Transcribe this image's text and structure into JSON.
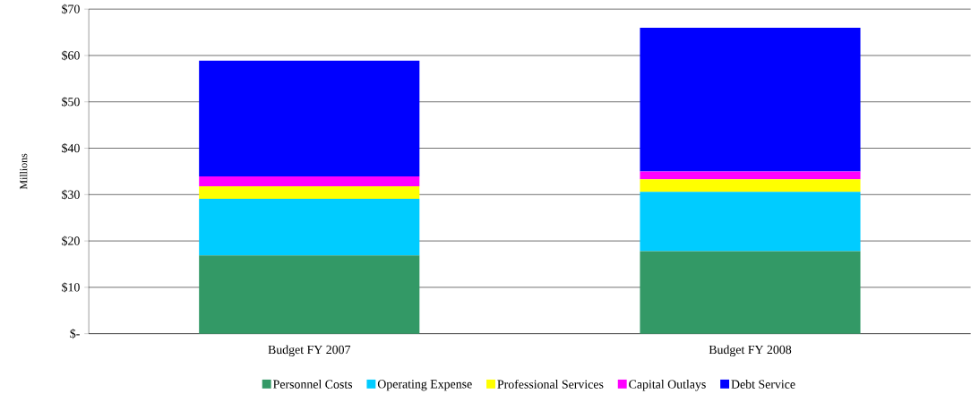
{
  "chart_data": {
    "type": "bar",
    "stacked": true,
    "ylabel": "Millions",
    "categories": [
      "Budget FY 2007",
      "Budget FY 2008"
    ],
    "series": [
      {
        "name": "Personnel Costs",
        "color": "#339966",
        "values": [
          16.9,
          17.8
        ]
      },
      {
        "name": "Operating Expense",
        "color": "#00ccff",
        "values": [
          12.2,
          12.8
        ]
      },
      {
        "name": "Professional Services",
        "color": "#ffff00",
        "values": [
          2.7,
          2.7
        ]
      },
      {
        "name": "Capital Outlays",
        "color": "#ff00ff",
        "values": [
          2.1,
          1.7
        ]
      },
      {
        "name": "Debt Service",
        "color": "#0000ff",
        "values": [
          25.0,
          31.0
        ]
      }
    ],
    "ylim": [
      0,
      70
    ],
    "yticks": [
      {
        "value": 0,
        "label": "$-"
      },
      {
        "value": 10,
        "label": "$10"
      },
      {
        "value": 20,
        "label": "$20"
      },
      {
        "value": 30,
        "label": "$30"
      },
      {
        "value": 40,
        "label": "$40"
      },
      {
        "value": 50,
        "label": "$50"
      },
      {
        "value": 60,
        "label": "$60"
      },
      {
        "value": 70,
        "label": "$70"
      }
    ],
    "grid": "y",
    "legend": "bottom"
  }
}
